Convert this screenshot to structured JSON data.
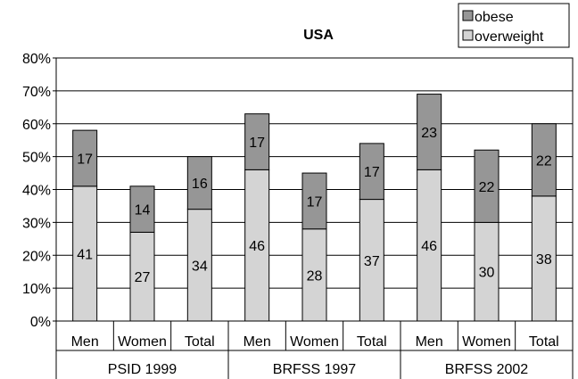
{
  "chart_data": {
    "type": "bar",
    "stacked": true,
    "title": "USA",
    "groups": [
      {
        "label": "PSID 1999",
        "categories": [
          "Men",
          "Women",
          "Total"
        ]
      },
      {
        "label": "BRFSS 1997",
        "categories": [
          "Men",
          "Women",
          "Total"
        ]
      },
      {
        "label": "BRFSS 2002",
        "categories": [
          "Men",
          "Women",
          "Total"
        ]
      }
    ],
    "series": [
      {
        "name": "overweight",
        "color": "#d4d4d4",
        "values": [
          41,
          27,
          34,
          46,
          28,
          37,
          46,
          30,
          38
        ]
      },
      {
        "name": "obese",
        "color": "#969696",
        "values": [
          17,
          14,
          16,
          17,
          17,
          17,
          23,
          22,
          22
        ]
      }
    ],
    "legend_order": [
      "obese",
      "overweight"
    ],
    "legend_position": "top-right",
    "y_ticks": [
      "0%",
      "10%",
      "20%",
      "30%",
      "40%",
      "50%",
      "60%",
      "70%",
      "80%"
    ],
    "ylim": [
      0,
      80
    ],
    "grid": true
  }
}
